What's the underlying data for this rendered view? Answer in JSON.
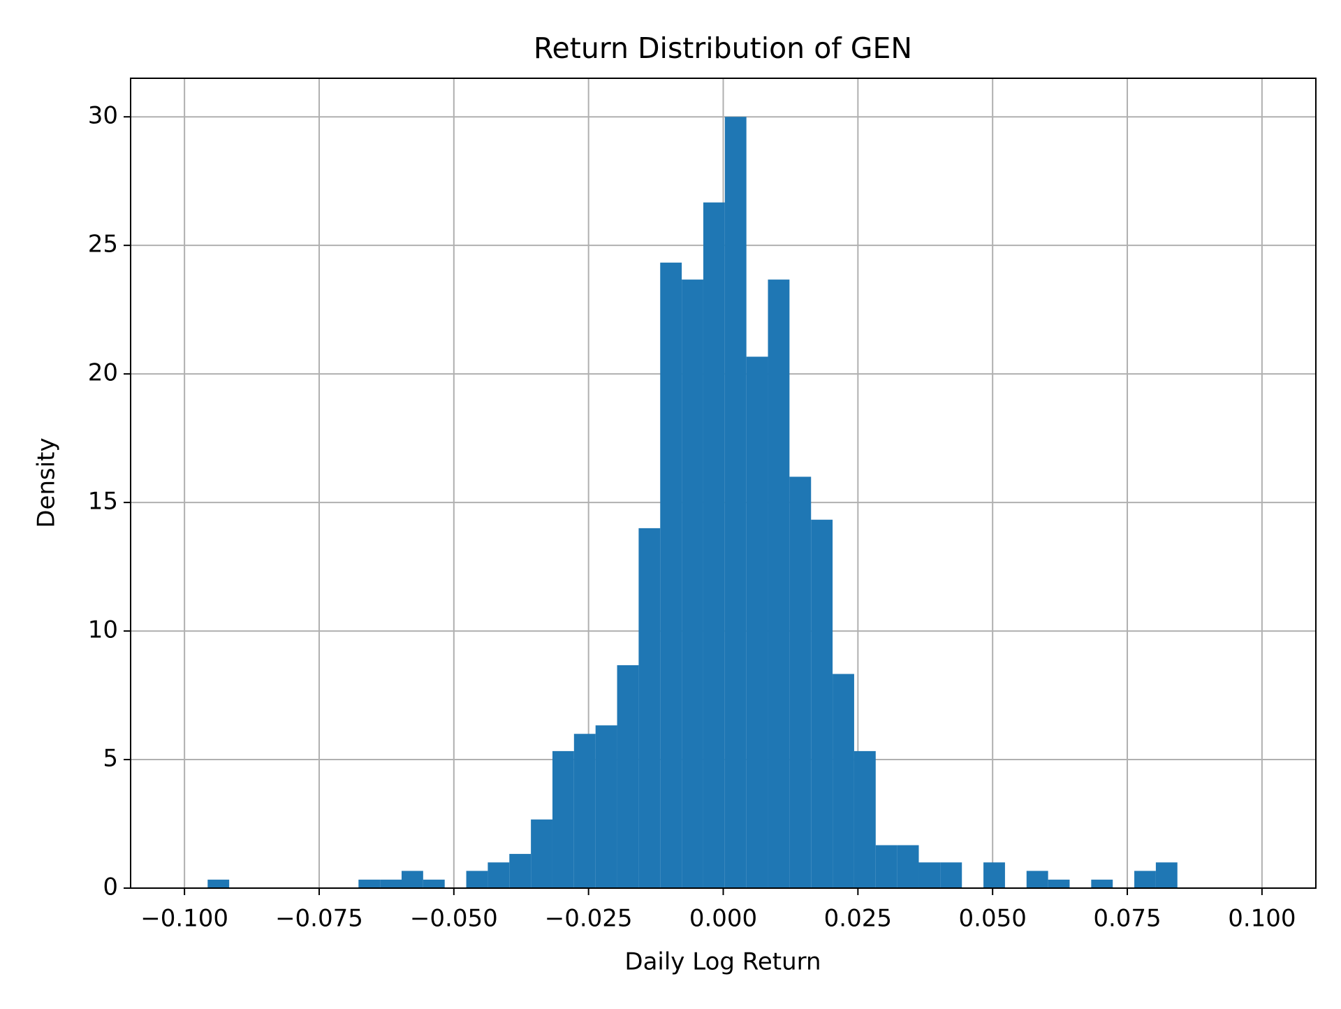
{
  "chart_data": {
    "type": "histogram",
    "title": "Return Distribution of GEN",
    "xlabel": "Daily Log Return",
    "ylabel": "Density",
    "color": "#1f77b4",
    "grid": true,
    "bins": [
      -0.0957,
      -0.0917,
      -0.0877,
      -0.0837,
      -0.0797,
      -0.0757,
      -0.0717,
      -0.0677,
      -0.0637,
      -0.0597,
      -0.0557,
      -0.0517,
      -0.0477,
      -0.0437,
      -0.0397,
      -0.0357,
      -0.0317,
      -0.0277,
      -0.0237,
      -0.0197,
      -0.0157,
      -0.0117,
      -0.0077,
      -0.0037,
      0.0003,
      0.0043,
      0.0083,
      0.0123,
      0.0163,
      0.0203,
      0.0243,
      0.0283,
      0.0323,
      0.0363,
      0.0403,
      0.0443,
      0.0483,
      0.0523,
      0.0563,
      0.0603,
      0.0643,
      0.0683,
      0.0723,
      0.0763,
      0.0803,
      0.0843
    ],
    "values": [
      0.33,
      0,
      0,
      0,
      0,
      0,
      0,
      0.33,
      0.33,
      0.67,
      0.33,
      0,
      0.67,
      1.0,
      1.33,
      2.67,
      5.33,
      6.0,
      6.33,
      8.67,
      14.0,
      24.33,
      23.67,
      26.67,
      30.0,
      20.67,
      23.67,
      16.0,
      14.33,
      8.33,
      5.33,
      1.67,
      1.67,
      1.0,
      1.0,
      0,
      1.0,
      0,
      0.67,
      0.33,
      0,
      0.33,
      0,
      0.67,
      1.0
    ],
    "xlim": [
      -0.11,
      0.11
    ],
    "ylim": [
      0,
      31.5
    ],
    "xticks": [
      {
        "value": -0.1,
        "label": "−0.100"
      },
      {
        "value": -0.075,
        "label": "−0.075"
      },
      {
        "value": -0.05,
        "label": "−0.050"
      },
      {
        "value": -0.025,
        "label": "−0.025"
      },
      {
        "value": 0,
        "label": "0.000"
      },
      0.025,
      {
        "value": 0.05,
        "label": "0.050"
      },
      0.075,
      {
        "value": 0.1,
        "label": "0.100"
      }
    ],
    "yticks": [
      0,
      5,
      10,
      15,
      20,
      25,
      30
    ]
  }
}
